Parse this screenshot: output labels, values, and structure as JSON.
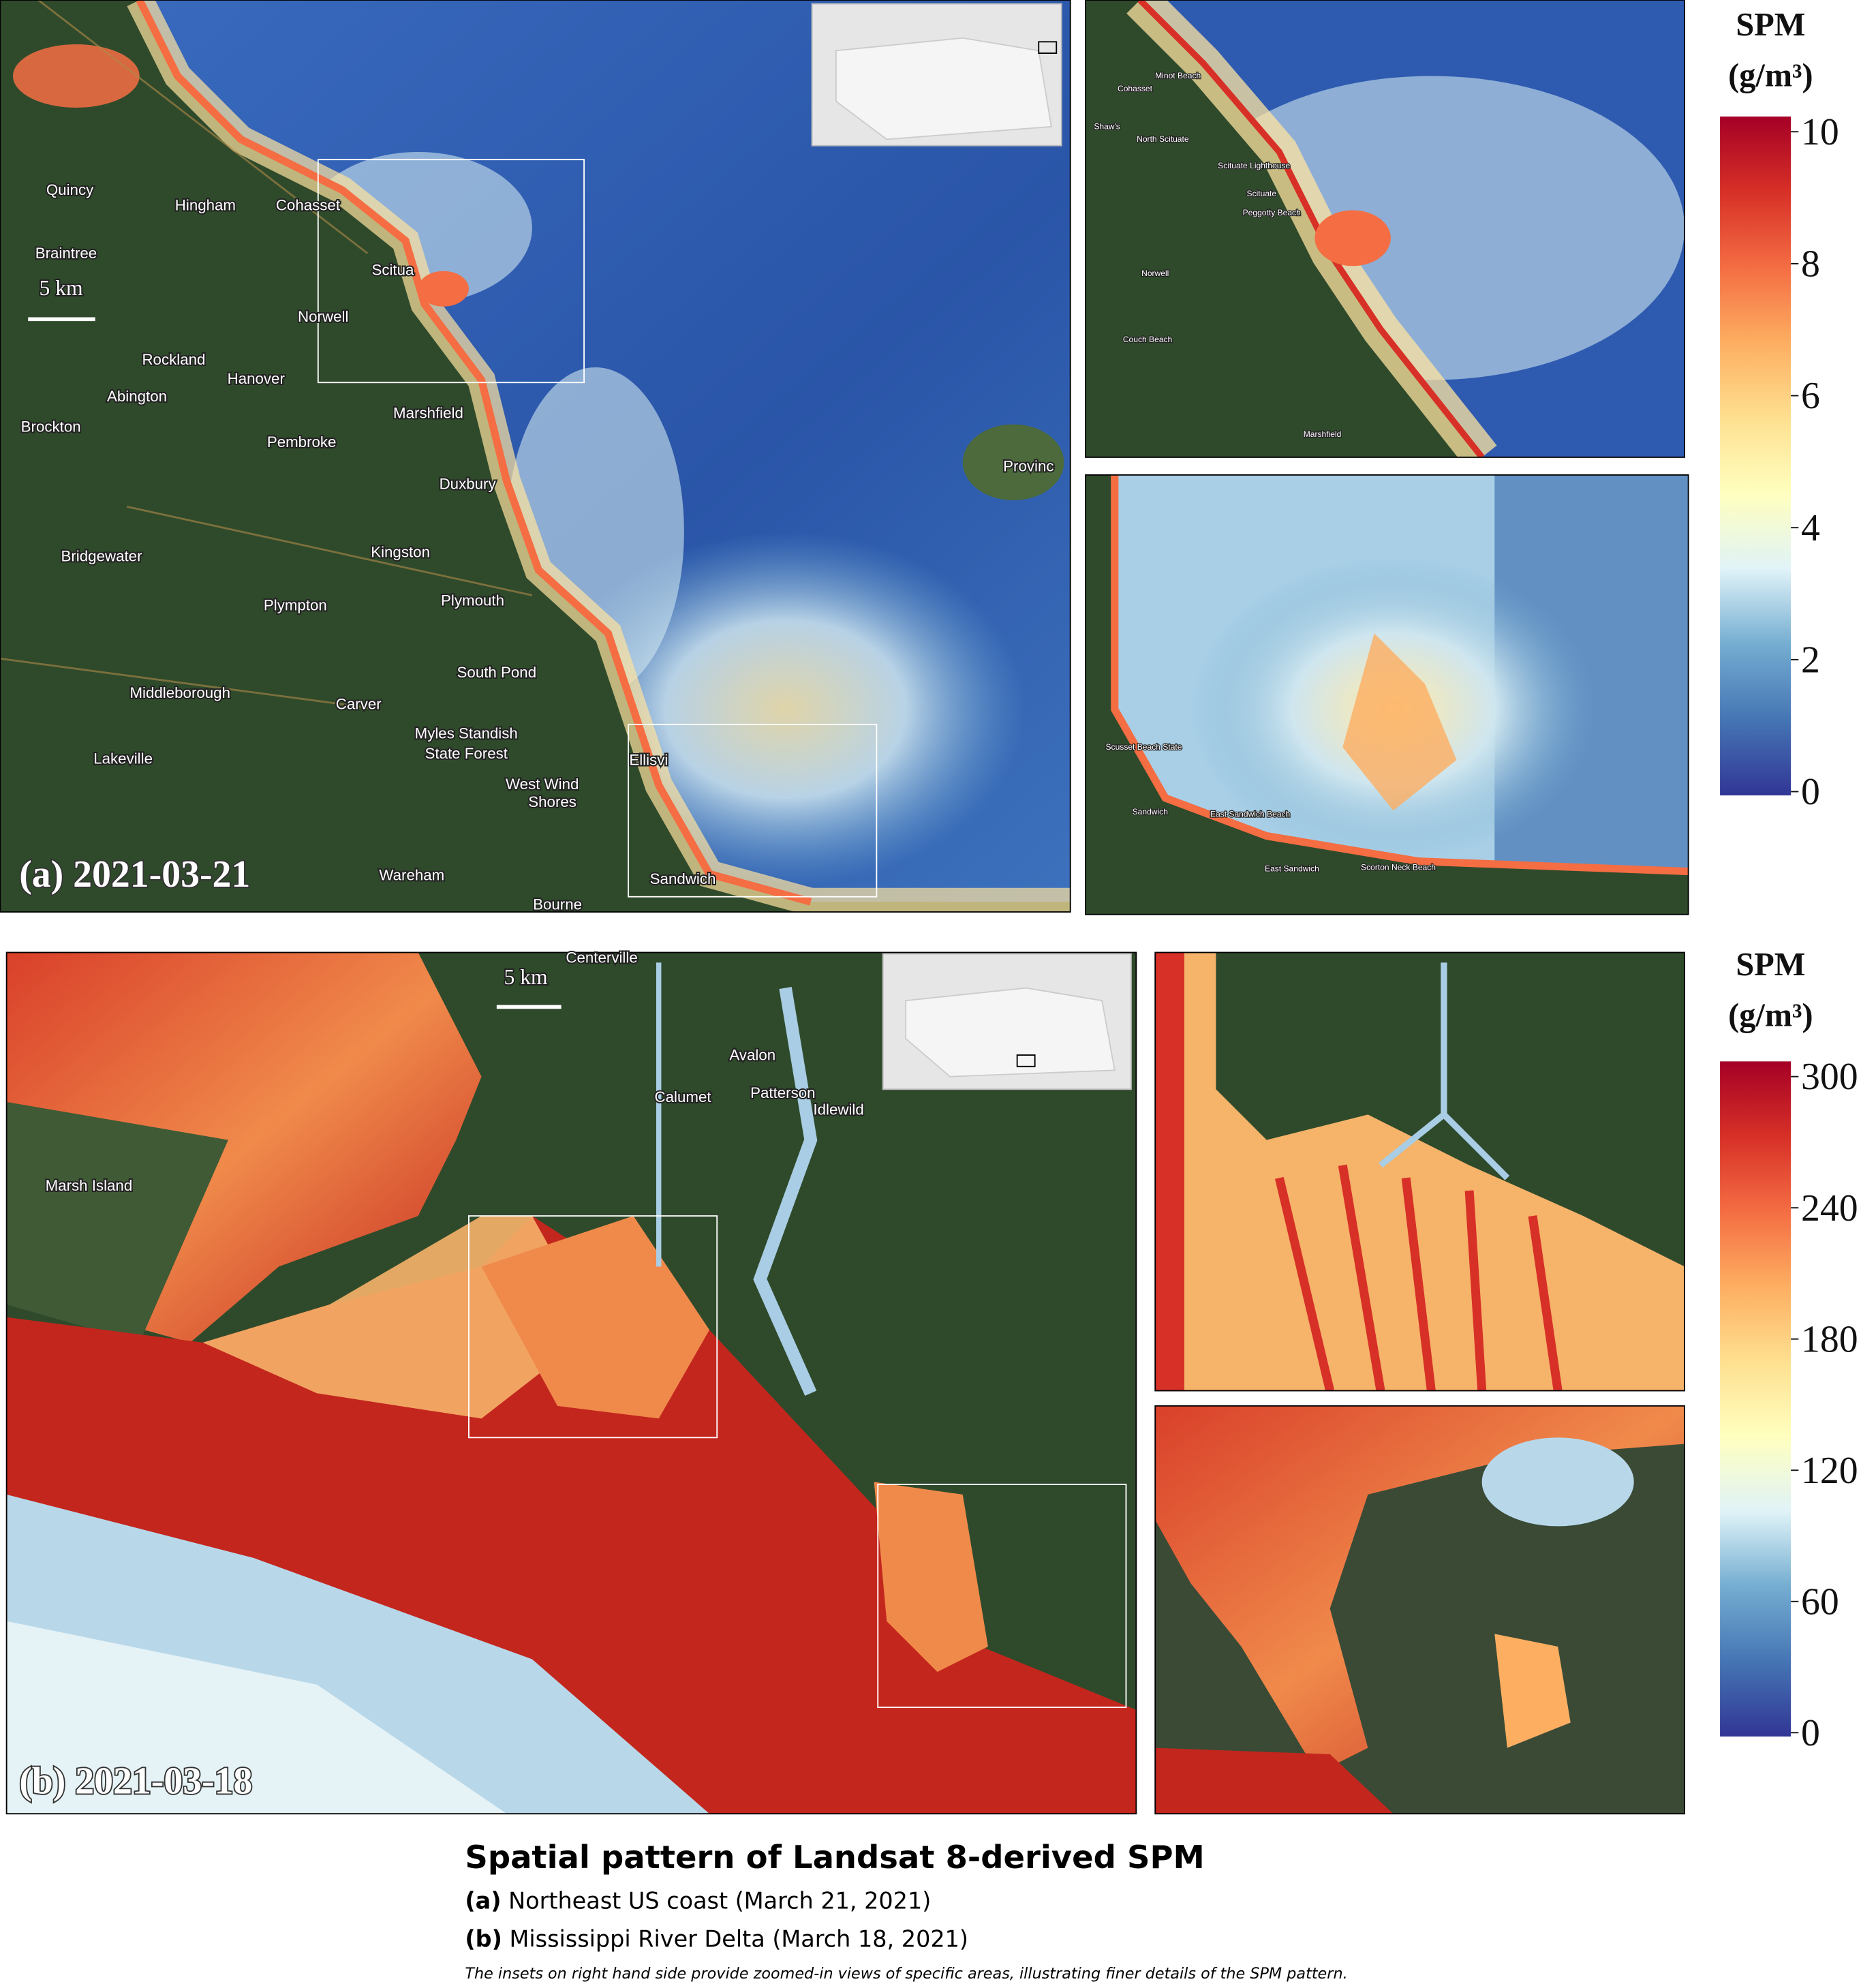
{
  "panels": [
    {
      "label": "(a) 2021-03-21",
      "scale_bar": "5 km",
      "place_labels": [
        "Quincy",
        "Hingham",
        "Cohasset",
        "Braintree",
        "Scitua",
        "Norwell",
        "Rockland",
        "Hanover",
        "Abington",
        "Brockton",
        "Marshfield",
        "Pembroke",
        "Duxbury",
        "Bridgewater",
        "Kingston",
        "Plympton",
        "Plymouth",
        "South Pond",
        "Middleborough",
        "Carver",
        "Myles Standish",
        "State Forest",
        "Lakeville",
        "West Wind",
        "Shores",
        "Ellisvi",
        "Wareham",
        "Sandwich",
        "Bourne",
        "Provinc"
      ],
      "inset_labels": [
        "Minot Beach",
        "Cohasset",
        "Shaw's",
        "North Scituate",
        "Scituate Lighthouse",
        "Scituate",
        "Peggotty Beach",
        "Norwell",
        "Couch Beach",
        "Marshfield",
        "Scusset Beach State",
        "Sandwich",
        "East Sandwich Beach",
        "East Sandwich",
        "Scorton Neck Beach"
      ],
      "colorbar": {
        "title": "SPM",
        "unit": "(g/m³)",
        "lim": [
          0,
          10
        ],
        "ticks": [
          0,
          2,
          4,
          6,
          8,
          10
        ]
      }
    },
    {
      "label": "(b) 2021-03-18",
      "scale_bar": "5 km",
      "place_labels": [
        "Centerville",
        "Avalon",
        "Calumet",
        "Patterson",
        "Idlewild",
        "Marsh Island"
      ],
      "colorbar": {
        "title": "SPM",
        "unit": "(g/m³)",
        "lim": [
          0,
          300
        ],
        "ticks": [
          0,
          60,
          120,
          180,
          240,
          300
        ]
      }
    }
  ],
  "colormap": [
    "#313695",
    "#4575b4",
    "#74add1",
    "#e0f3f8",
    "#ffffbf",
    "#fee090",
    "#fdae61",
    "#f46d43",
    "#d73027",
    "#a50026"
  ],
  "caption": {
    "title": "Spatial pattern of Landsat 8-derived SPM",
    "items": [
      {
        "label": "(a)",
        "text": "Northeast US coast (March 21, 2021)"
      },
      {
        "label": "(b)",
        "text": "Mississippi River Delta (March 18, 2021)"
      }
    ],
    "note": "The insets on right hand side provide zoomed-in views of specific areas, illustrating finer details of the SPM pattern."
  }
}
